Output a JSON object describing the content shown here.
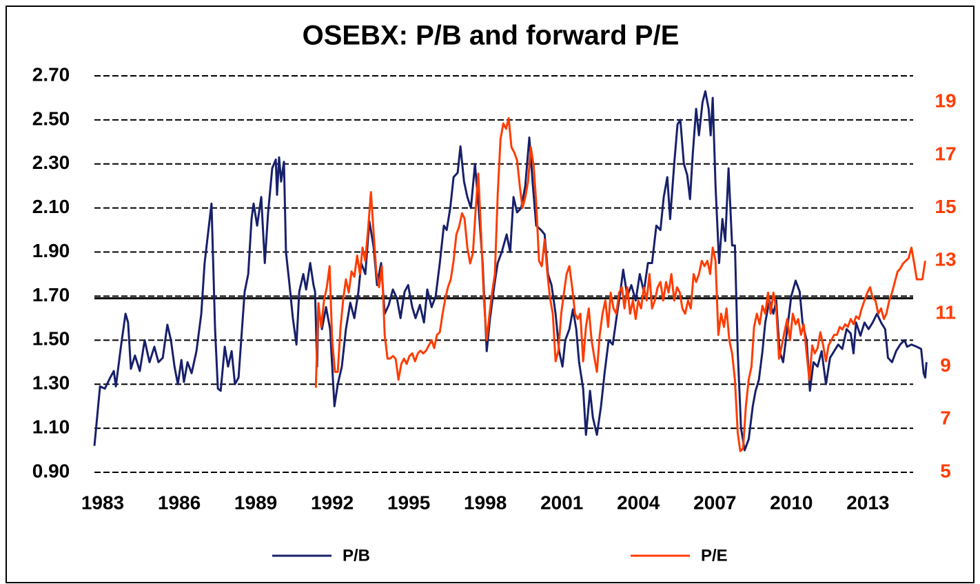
{
  "chart_data": {
    "type": "line",
    "title": "OSEBX: P/B and forward P/E",
    "xlim": [
      1983,
      2015.8
    ],
    "xticks": [
      1983,
      1986,
      1989,
      1992,
      1995,
      1998,
      2001,
      2004,
      2007,
      2010,
      2013
    ],
    "ylim": [
      0.9,
      2.7
    ],
    "yticks": [
      {
        "value": 0.9,
        "label": "0.90"
      },
      {
        "value": 1.1,
        "label": "1.10"
      },
      {
        "value": 1.3,
        "label": "1.30"
      },
      {
        "value": 1.5,
        "label": "1.50"
      },
      {
        "value": 1.7,
        "label": "1.70"
      },
      {
        "value": 1.9,
        "label": "1.90"
      },
      {
        "value": 2.1,
        "label": "2.10"
      },
      {
        "value": 2.3,
        "label": "2.30"
      },
      {
        "value": 2.5,
        "label": "2.50"
      },
      {
        "value": 2.7,
        "label": "2.70"
      }
    ],
    "y2lim": [
      5,
      20
    ],
    "y2ticks": [
      5,
      7,
      9,
      11,
      13,
      15,
      17,
      19
    ],
    "grid": true,
    "reference_line": 1.69,
    "legend": "bottom",
    "series": [
      {
        "name": "P/B",
        "color": "#17206a",
        "x": [
          1983.0,
          1983.22,
          1983.41,
          1983.62,
          1983.76,
          1983.84,
          1984.05,
          1984.22,
          1984.32,
          1984.43,
          1984.59,
          1984.78,
          1984.97,
          1985.16,
          1985.35,
          1985.51,
          1985.68,
          1985.86,
          1986.0,
          1986.14,
          1986.27,
          1986.41,
          1986.51,
          1986.65,
          1986.81,
          1987.0,
          1987.19,
          1987.32,
          1987.59,
          1987.73,
          1987.84,
          1987.95,
          1988.11,
          1988.24,
          1988.38,
          1988.51,
          1988.65,
          1988.89,
          1989.03,
          1989.16,
          1989.24,
          1989.38,
          1989.54,
          1989.68,
          1989.81,
          1989.97,
          1990.11,
          1990.16,
          1990.24,
          1990.32,
          1990.43,
          1990.51,
          1990.65,
          1990.78,
          1990.92,
          1991.03,
          1991.19,
          1991.3,
          1991.46,
          1991.59,
          1991.65,
          1991.73,
          1991.78,
          1991.92,
          1992.08,
          1992.24,
          1992.41,
          1992.54,
          1992.7,
          1992.86,
          1993.03,
          1993.19,
          1993.35,
          1993.46,
          1993.62,
          1993.78,
          1993.95,
          1994.08,
          1994.24,
          1994.38,
          1994.54,
          1994.7,
          1994.86,
          1995.0,
          1995.16,
          1995.3,
          1995.46,
          1995.59,
          1995.76,
          1995.92,
          1996.05,
          1996.22,
          1996.38,
          1996.54,
          1996.7,
          1996.81,
          1996.95,
          1997.08,
          1997.24,
          1997.35,
          1997.49,
          1997.62,
          1997.76,
          1997.92,
          1998.05,
          1998.22,
          1998.38,
          1998.51,
          1998.68,
          1998.81,
          1998.97,
          1999.16,
          1999.3,
          1999.43,
          1999.57,
          1999.73,
          1999.89,
          2000.05,
          2000.19,
          2000.32,
          2000.51,
          2000.65,
          2000.78,
          2000.92,
          2001.08,
          2001.22,
          2001.35,
          2001.46,
          2001.62,
          2001.76,
          2001.89,
          2002.0,
          2002.16,
          2002.27,
          2002.43,
          2002.54,
          2002.7,
          2002.86,
          2003.0,
          2003.16,
          2003.32,
          2003.49,
          2003.62,
          2003.73,
          2003.89,
          2004.05,
          2004.22,
          2004.38,
          2004.54,
          2004.7,
          2004.86,
          2005.03,
          2005.19,
          2005.32,
          2005.46,
          2005.57,
          2005.73,
          2005.86,
          2005.97,
          2006.11,
          2006.24,
          2006.35,
          2006.46,
          2006.59,
          2006.7,
          2006.84,
          2006.95,
          2007.08,
          2007.16,
          2007.24,
          2007.35,
          2007.49,
          2007.62,
          2007.73,
          2007.86,
          2008.0,
          2008.11,
          2008.22,
          2008.35,
          2008.49,
          2008.65,
          2008.81,
          2008.92,
          2009.05,
          2009.19,
          2009.3,
          2009.46,
          2009.62,
          2009.73,
          2009.86,
          2010.0,
          2010.16,
          2010.32,
          2010.49,
          2010.65,
          2010.76,
          2010.92,
          2011.05,
          2011.19,
          2011.35,
          2011.51,
          2011.68,
          2011.84,
          2012.0,
          2012.16,
          2012.32,
          2012.49,
          2012.65,
          2012.76,
          2012.86,
          2013.03,
          2013.19,
          2013.35,
          2013.51,
          2013.68,
          2013.84,
          2014.0,
          2014.11,
          2014.27,
          2014.43,
          2014.59,
          2014.76,
          2014.86,
          2015.03,
          2015.24,
          2015.41,
          2015.51,
          2015.57,
          2015.62
        ],
        "values": [
          1.02,
          1.29,
          1.28,
          1.33,
          1.36,
          1.29,
          1.48,
          1.62,
          1.58,
          1.37,
          1.43,
          1.36,
          1.5,
          1.4,
          1.47,
          1.4,
          1.42,
          1.57,
          1.5,
          1.38,
          1.3,
          1.41,
          1.31,
          1.4,
          1.35,
          1.45,
          1.62,
          1.85,
          2.12,
          1.55,
          1.28,
          1.27,
          1.47,
          1.38,
          1.45,
          1.3,
          1.33,
          1.72,
          1.8,
          2.05,
          2.12,
          2.02,
          2.15,
          1.85,
          2.08,
          2.28,
          2.32,
          2.16,
          2.33,
          2.22,
          2.31,
          1.9,
          1.75,
          1.6,
          1.48,
          1.72,
          1.8,
          1.73,
          1.85,
          1.75,
          1.72,
          1.38,
          1.65,
          1.55,
          1.65,
          1.55,
          1.2,
          1.3,
          1.38,
          1.55,
          1.67,
          1.6,
          1.72,
          1.85,
          1.8,
          2.04,
          1.92,
          1.75,
          1.85,
          1.62,
          1.66,
          1.73,
          1.69,
          1.6,
          1.72,
          1.75,
          1.65,
          1.6,
          1.66,
          1.58,
          1.73,
          1.65,
          1.7,
          1.85,
          2.02,
          2.0,
          2.1,
          2.24,
          2.26,
          2.38,
          2.22,
          2.15,
          2.1,
          2.3,
          2.12,
          1.85,
          1.45,
          1.6,
          1.75,
          1.85,
          1.9,
          1.98,
          1.9,
          2.15,
          2.08,
          2.1,
          2.2,
          2.42,
          2.2,
          2.02,
          2.0,
          1.98,
          1.8,
          1.75,
          1.62,
          1.45,
          1.38,
          1.5,
          1.55,
          1.64,
          1.55,
          1.4,
          1.28,
          1.07,
          1.27,
          1.15,
          1.07,
          1.2,
          1.35,
          1.5,
          1.48,
          1.62,
          1.72,
          1.82,
          1.7,
          1.75,
          1.68,
          1.8,
          1.72,
          1.85,
          1.85,
          2.02,
          2.0,
          2.15,
          2.24,
          2.05,
          2.3,
          2.48,
          2.5,
          2.3,
          2.25,
          2.14,
          2.35,
          2.55,
          2.43,
          2.58,
          2.63,
          2.55,
          2.43,
          2.6,
          2.2,
          1.85,
          2.05,
          1.95,
          2.28,
          1.93,
          1.93,
          1.45,
          1.1,
          1.0,
          1.05,
          1.2,
          1.27,
          1.32,
          1.45,
          1.58,
          1.68,
          1.62,
          1.68,
          1.45,
          1.4,
          1.55,
          1.7,
          1.77,
          1.72,
          1.58,
          1.5,
          1.27,
          1.4,
          1.38,
          1.45,
          1.3,
          1.42,
          1.45,
          1.48,
          1.46,
          1.55,
          1.53,
          1.44,
          1.58,
          1.52,
          1.58,
          1.55,
          1.58,
          1.62,
          1.58,
          1.55,
          1.42,
          1.4,
          1.45,
          1.48,
          1.5,
          1.47,
          1.48,
          1.47,
          1.46,
          1.35,
          1.33,
          1.4
        ]
      },
      {
        "name": "P/E",
        "color": "#ff3c00",
        "axis": "y2",
        "x": [
          1991.68,
          1991.78,
          1991.89,
          1992.0,
          1992.11,
          1992.22,
          1992.32,
          1992.43,
          1992.54,
          1992.65,
          1992.76,
          1992.86,
          1992.97,
          1993.08,
          1993.19,
          1993.3,
          1993.41,
          1993.51,
          1993.62,
          1993.73,
          1993.84,
          1993.95,
          1994.05,
          1994.16,
          1994.27,
          1994.38,
          1994.49,
          1994.59,
          1994.7,
          1994.81,
          1994.92,
          1995.03,
          1995.14,
          1995.24,
          1995.35,
          1995.46,
          1995.57,
          1995.68,
          1995.78,
          1995.89,
          1996.0,
          1996.11,
          1996.22,
          1996.32,
          1996.43,
          1996.54,
          1996.65,
          1996.76,
          1996.86,
          1996.97,
          1997.08,
          1997.19,
          1997.3,
          1997.41,
          1997.51,
          1997.62,
          1997.73,
          1997.84,
          1997.95,
          1998.05,
          1998.16,
          1998.27,
          1998.38,
          1998.49,
          1998.59,
          1998.7,
          1998.81,
          1998.92,
          1999.03,
          1999.14,
          1999.24,
          1999.35,
          1999.46,
          1999.57,
          1999.68,
          1999.78,
          1999.89,
          2000.0,
          2000.11,
          2000.22,
          2000.32,
          2000.43,
          2000.54,
          2000.65,
          2000.76,
          2000.86,
          2000.97,
          2001.08,
          2001.19,
          2001.3,
          2001.41,
          2001.51,
          2001.62,
          2001.73,
          2001.84,
          2001.95,
          2002.05,
          2002.16,
          2002.27,
          2002.38,
          2002.49,
          2002.59,
          2002.7,
          2002.81,
          2002.92,
          2003.03,
          2003.14,
          2003.24,
          2003.35,
          2003.46,
          2003.57,
          2003.68,
          2003.78,
          2003.89,
          2004.0,
          2004.11,
          2004.22,
          2004.32,
          2004.43,
          2004.54,
          2004.65,
          2004.76,
          2004.86,
          2004.97,
          2005.08,
          2005.19,
          2005.3,
          2005.41,
          2005.51,
          2005.62,
          2005.73,
          2005.84,
          2005.95,
          2006.05,
          2006.16,
          2006.27,
          2006.38,
          2006.49,
          2006.59,
          2006.7,
          2006.81,
          2006.92,
          2007.03,
          2007.14,
          2007.24,
          2007.35,
          2007.46,
          2007.57,
          2007.68,
          2007.78,
          2007.89,
          2008.0,
          2008.11,
          2008.22,
          2008.32,
          2008.43,
          2008.54,
          2008.65,
          2008.76,
          2008.86,
          2008.97,
          2009.08,
          2009.19,
          2009.3,
          2009.41,
          2009.51,
          2009.62,
          2009.73,
          2009.84,
          2009.95,
          2010.05,
          2010.16,
          2010.27,
          2010.38,
          2010.49,
          2010.59,
          2010.7,
          2010.81,
          2010.92,
          2011.03,
          2011.14,
          2011.24,
          2011.35,
          2011.46,
          2011.57,
          2011.68,
          2011.78,
          2011.89,
          2012.0,
          2012.11,
          2012.22,
          2012.32,
          2012.43,
          2012.54,
          2012.65,
          2012.76,
          2012.86,
          2012.97,
          2013.08,
          2013.19,
          2013.3,
          2013.41,
          2013.51,
          2013.62,
          2013.73,
          2013.84,
          2013.95,
          2014.05,
          2014.16,
          2014.27,
          2014.38,
          2014.49,
          2014.59,
          2014.7,
          2014.81,
          2014.92,
          2015.03,
          2015.14,
          2015.24,
          2015.35,
          2015.46,
          2015.57
        ],
        "values": [
          8.2,
          11.4,
          10.5,
          11.5,
          12.0,
          12.8,
          10.0,
          8.8,
          8.8,
          10.5,
          11.6,
          12.3,
          11.8,
          12.6,
          12.4,
          13.2,
          12.5,
          13.5,
          13.0,
          14.2,
          15.6,
          14.0,
          12.6,
          12.0,
          12.8,
          10.2,
          9.3,
          9.3,
          9.4,
          9.3,
          8.5,
          9.1,
          9.3,
          9.1,
          9.4,
          9.5,
          9.2,
          9.5,
          9.6,
          9.5,
          9.6,
          9.8,
          10.0,
          9.7,
          10.2,
          10.3,
          11.0,
          11.6,
          12.0,
          12.3,
          13.0,
          14.0,
          14.3,
          14.8,
          14.6,
          13.5,
          12.9,
          13.3,
          15.0,
          16.3,
          14.0,
          11.5,
          10.0,
          11.0,
          11.8,
          12.5,
          15.5,
          17.6,
          18.2,
          18.0,
          18.4,
          17.3,
          17.1,
          16.8,
          15.8,
          15.0,
          15.4,
          16.0,
          17.3,
          16.6,
          15.2,
          13.0,
          12.8,
          13.8,
          12.5,
          11.6,
          11.0,
          9.2,
          9.6,
          11.0,
          11.8,
          12.5,
          12.8,
          12.0,
          11.0,
          10.8,
          11.0,
          9.2,
          10.5,
          11.2,
          10.0,
          9.4,
          8.8,
          10.2,
          11.0,
          11.5,
          10.5,
          11.8,
          11.2,
          11.0,
          11.8,
          12.0,
          11.2,
          12.0,
          11.0,
          11.5,
          10.8,
          11.5,
          11.2,
          12.0,
          11.5,
          12.5,
          11.2,
          11.5,
          12.0,
          12.2,
          11.5,
          12.2,
          11.8,
          12.5,
          11.5,
          12.0,
          11.8,
          11.2,
          11.0,
          11.5,
          11.2,
          12.5,
          12.2,
          12.5,
          13.0,
          12.8,
          13.0,
          12.5,
          13.5,
          13.0,
          10.2,
          11.0,
          10.5,
          11.2,
          10.0,
          9.5,
          8.5,
          6.5,
          5.8,
          5.9,
          7.5,
          8.5,
          9.0,
          10.5,
          11.0,
          10.6,
          11.3,
          11.0,
          11.8,
          11.0,
          11.8,
          11.2,
          9.3,
          9.8,
          10.3,
          10.8,
          10.0,
          11.0,
          10.6,
          10.8,
          10.2,
          10.6,
          9.5,
          8.5,
          9.8,
          9.5,
          9.7,
          10.3,
          9.8,
          9.2,
          9.8,
          10.0,
          10.2,
          10.2,
          10.5,
          10.4,
          10.6,
          10.5,
          10.8,
          10.6,
          10.9,
          10.8,
          11.2,
          11.5,
          11.8,
          12.0,
          11.6,
          11.5,
          11.0,
          11.2,
          10.8,
          11.0,
          11.5,
          11.8,
          12.2,
          12.6,
          12.7,
          12.9,
          13.0,
          13.1,
          13.5,
          12.9,
          12.3,
          12.3,
          12.3,
          13.0
        ]
      }
    ]
  }
}
